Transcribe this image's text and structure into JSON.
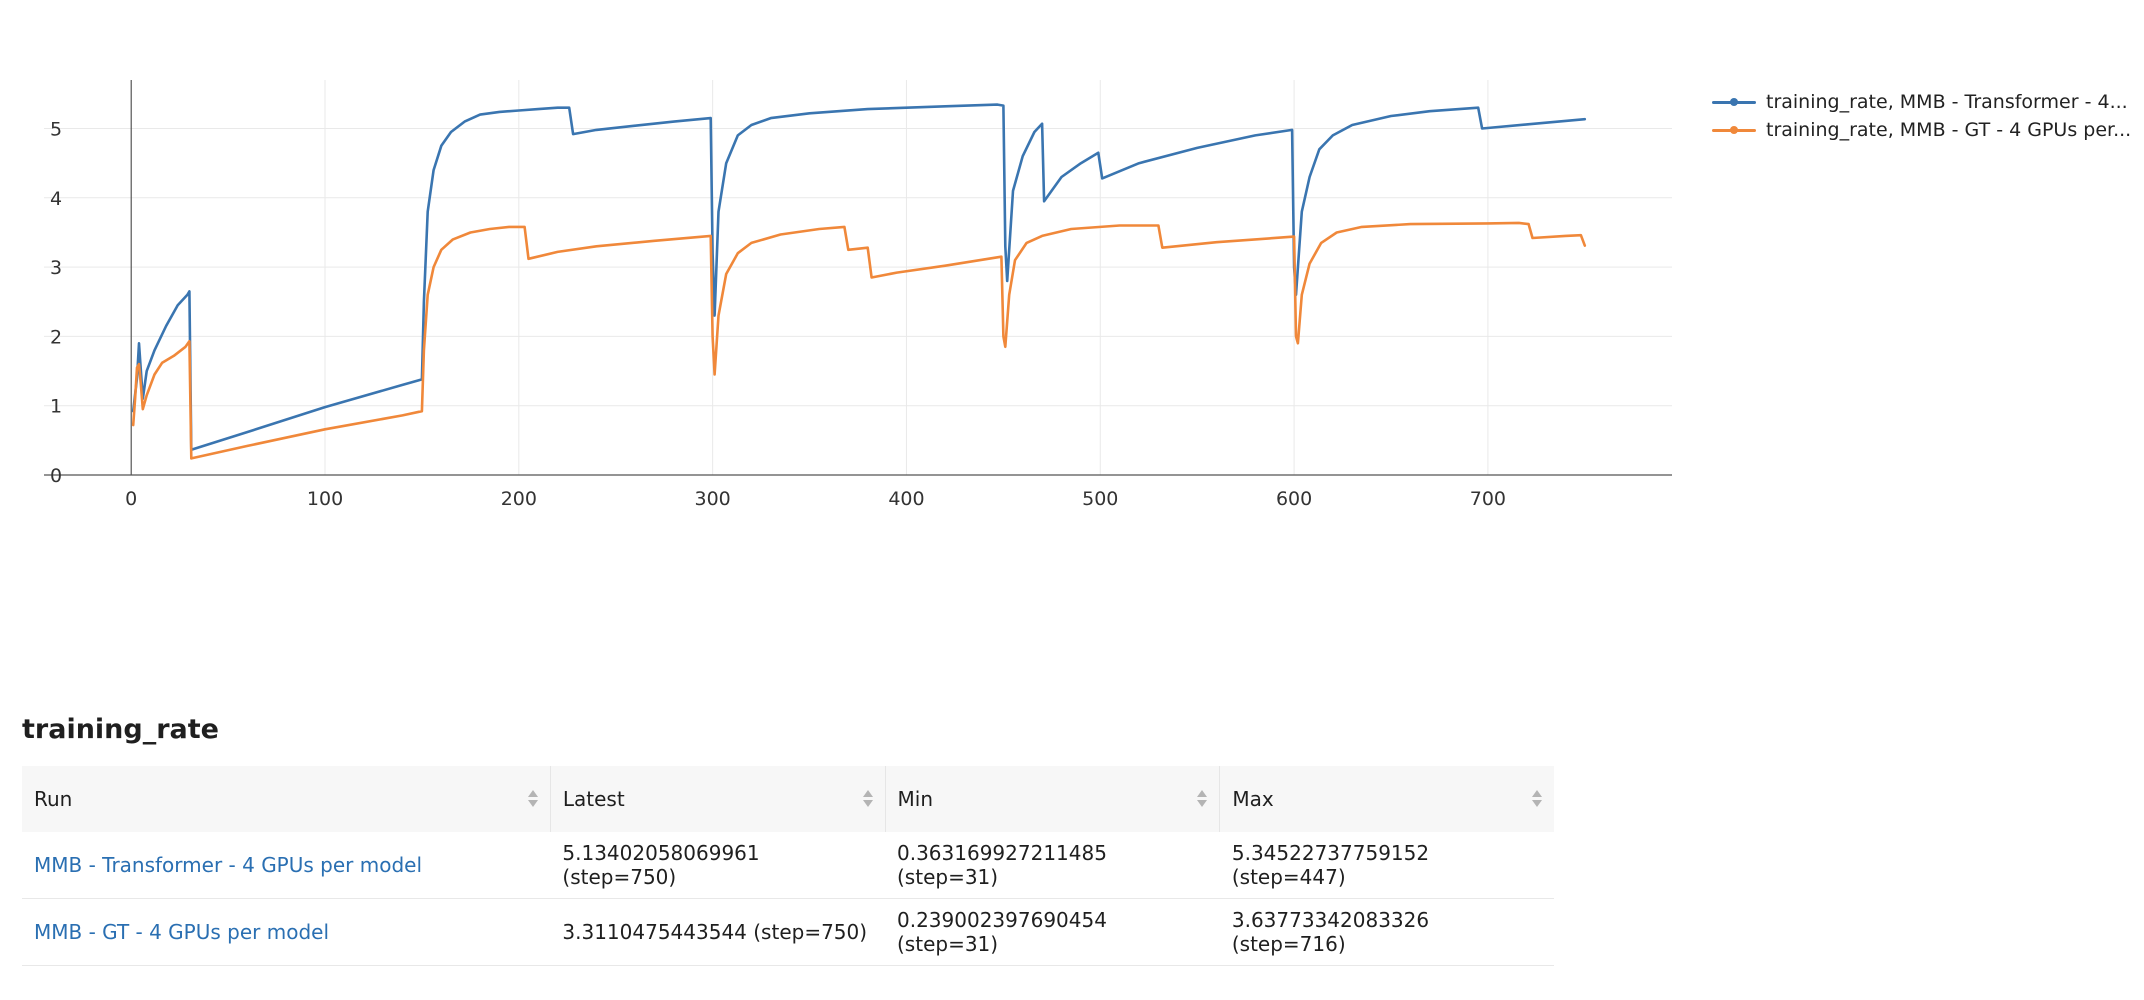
{
  "metric_title": "training_rate",
  "table": {
    "columns": [
      "Run",
      "Latest",
      "Min",
      "Max"
    ],
    "rows": [
      {
        "run": "MMB - Transformer - 4 GPUs per model",
        "latest": "5.13402058069961 (step=750)",
        "min": "0.363169927211485 (step=31)",
        "max": "5.34522737759152 (step=447)"
      },
      {
        "run": "MMB - GT - 4 GPUs per model",
        "latest": "3.3110475443544 (step=750)",
        "min": "0.239002397690454 (step=31)",
        "max": "3.63773342083326 (step=716)"
      }
    ]
  },
  "legend": [
    {
      "label": "training_rate, MMB - Transformer - 4...",
      "color": "#3a75b0"
    },
    {
      "label": "training_rate, MMB - GT - 4 GPUs per...",
      "color": "#f0883a"
    }
  ],
  "chart_data": {
    "type": "line",
    "title": "",
    "xlabel": "",
    "ylabel": "",
    "xlim": [
      -45,
      795
    ],
    "ylim": [
      0,
      5.7
    ],
    "xticks": [
      0,
      100,
      200,
      300,
      400,
      500,
      600,
      700
    ],
    "yticks": [
      0,
      1,
      2,
      3,
      4,
      5
    ],
    "grid": true,
    "legend_position": "right",
    "series": [
      {
        "color": "#3a75b0",
        "points": [
          [
            1,
            0.92
          ],
          [
            3,
            1.4
          ],
          [
            4,
            1.9
          ],
          [
            5,
            1.5
          ],
          [
            6,
            1.1
          ],
          [
            8,
            1.5
          ],
          [
            12,
            1.8
          ],
          [
            18,
            2.15
          ],
          [
            24,
            2.45
          ],
          [
            29,
            2.6
          ],
          [
            30,
            2.65
          ],
          [
            31,
            0.363
          ],
          [
            60,
            0.62
          ],
          [
            100,
            0.98
          ],
          [
            140,
            1.3
          ],
          [
            150,
            1.38
          ],
          [
            151,
            2.5
          ],
          [
            153,
            3.8
          ],
          [
            156,
            4.4
          ],
          [
            160,
            4.75
          ],
          [
            165,
            4.95
          ],
          [
            172,
            5.1
          ],
          [
            180,
            5.2
          ],
          [
            190,
            5.24
          ],
          [
            200,
            5.26
          ],
          [
            210,
            5.28
          ],
          [
            220,
            5.3
          ],
          [
            226,
            5.3
          ],
          [
            228,
            4.92
          ],
          [
            240,
            4.98
          ],
          [
            260,
            5.04
          ],
          [
            280,
            5.1
          ],
          [
            299,
            5.15
          ],
          [
            300,
            3.2
          ],
          [
            301,
            2.3
          ],
          [
            303,
            3.8
          ],
          [
            307,
            4.5
          ],
          [
            313,
            4.9
          ],
          [
            320,
            5.05
          ],
          [
            330,
            5.15
          ],
          [
            350,
            5.22
          ],
          [
            380,
            5.28
          ],
          [
            420,
            5.32
          ],
          [
            447,
            5.345
          ],
          [
            450,
            5.33
          ],
          [
            451,
            3.3
          ],
          [
            452,
            2.8
          ],
          [
            455,
            4.1
          ],
          [
            460,
            4.6
          ],
          [
            466,
            4.95
          ],
          [
            470,
            5.07
          ],
          [
            471,
            3.95
          ],
          [
            480,
            4.3
          ],
          [
            490,
            4.5
          ],
          [
            499,
            4.65
          ],
          [
            501,
            4.28
          ],
          [
            520,
            4.5
          ],
          [
            550,
            4.72
          ],
          [
            580,
            4.9
          ],
          [
            599,
            4.98
          ],
          [
            600,
            3.0
          ],
          [
            601,
            2.6
          ],
          [
            604,
            3.8
          ],
          [
            608,
            4.3
          ],
          [
            613,
            4.7
          ],
          [
            620,
            4.9
          ],
          [
            630,
            5.05
          ],
          [
            650,
            5.18
          ],
          [
            670,
            5.25
          ],
          [
            695,
            5.3
          ],
          [
            697,
            5.0
          ],
          [
            720,
            5.06
          ],
          [
            750,
            5.134
          ]
        ]
      },
      {
        "color": "#f0883a",
        "points": [
          [
            1,
            0.72
          ],
          [
            2,
            1.1
          ],
          [
            3,
            1.55
          ],
          [
            4,
            1.6
          ],
          [
            5,
            1.3
          ],
          [
            6,
            0.95
          ],
          [
            8,
            1.15
          ],
          [
            12,
            1.45
          ],
          [
            16,
            1.62
          ],
          [
            22,
            1.72
          ],
          [
            28,
            1.85
          ],
          [
            30,
            1.93
          ],
          [
            31,
            0.239
          ],
          [
            60,
            0.42
          ],
          [
            100,
            0.66
          ],
          [
            140,
            0.86
          ],
          [
            150,
            0.92
          ],
          [
            151,
            1.8
          ],
          [
            153,
            2.6
          ],
          [
            156,
            3.0
          ],
          [
            160,
            3.25
          ],
          [
            166,
            3.4
          ],
          [
            175,
            3.5
          ],
          [
            185,
            3.55
          ],
          [
            195,
            3.58
          ],
          [
            203,
            3.58
          ],
          [
            205,
            3.12
          ],
          [
            220,
            3.22
          ],
          [
            240,
            3.3
          ],
          [
            270,
            3.38
          ],
          [
            299,
            3.45
          ],
          [
            300,
            2.0
          ],
          [
            301,
            1.45
          ],
          [
            303,
            2.3
          ],
          [
            307,
            2.9
          ],
          [
            313,
            3.2
          ],
          [
            320,
            3.35
          ],
          [
            335,
            3.47
          ],
          [
            355,
            3.55
          ],
          [
            368,
            3.58
          ],
          [
            370,
            3.25
          ],
          [
            380,
            3.28
          ],
          [
            382,
            2.85
          ],
          [
            395,
            2.92
          ],
          [
            420,
            3.02
          ],
          [
            449,
            3.15
          ],
          [
            450,
            2.0
          ],
          [
            451,
            1.85
          ],
          [
            453,
            2.6
          ],
          [
            456,
            3.1
          ],
          [
            462,
            3.35
          ],
          [
            470,
            3.45
          ],
          [
            485,
            3.55
          ],
          [
            510,
            3.6
          ],
          [
            530,
            3.6
          ],
          [
            532,
            3.28
          ],
          [
            560,
            3.36
          ],
          [
            600,
            3.44
          ],
          [
            601,
            2.0
          ],
          [
            602,
            1.9
          ],
          [
            604,
            2.6
          ],
          [
            608,
            3.05
          ],
          [
            614,
            3.35
          ],
          [
            622,
            3.5
          ],
          [
            635,
            3.58
          ],
          [
            660,
            3.62
          ],
          [
            700,
            3.63
          ],
          [
            716,
            3.638
          ],
          [
            721,
            3.62
          ],
          [
            723,
            3.42
          ],
          [
            740,
            3.45
          ],
          [
            748,
            3.46
          ],
          [
            750,
            3.311
          ]
        ]
      }
    ]
  }
}
